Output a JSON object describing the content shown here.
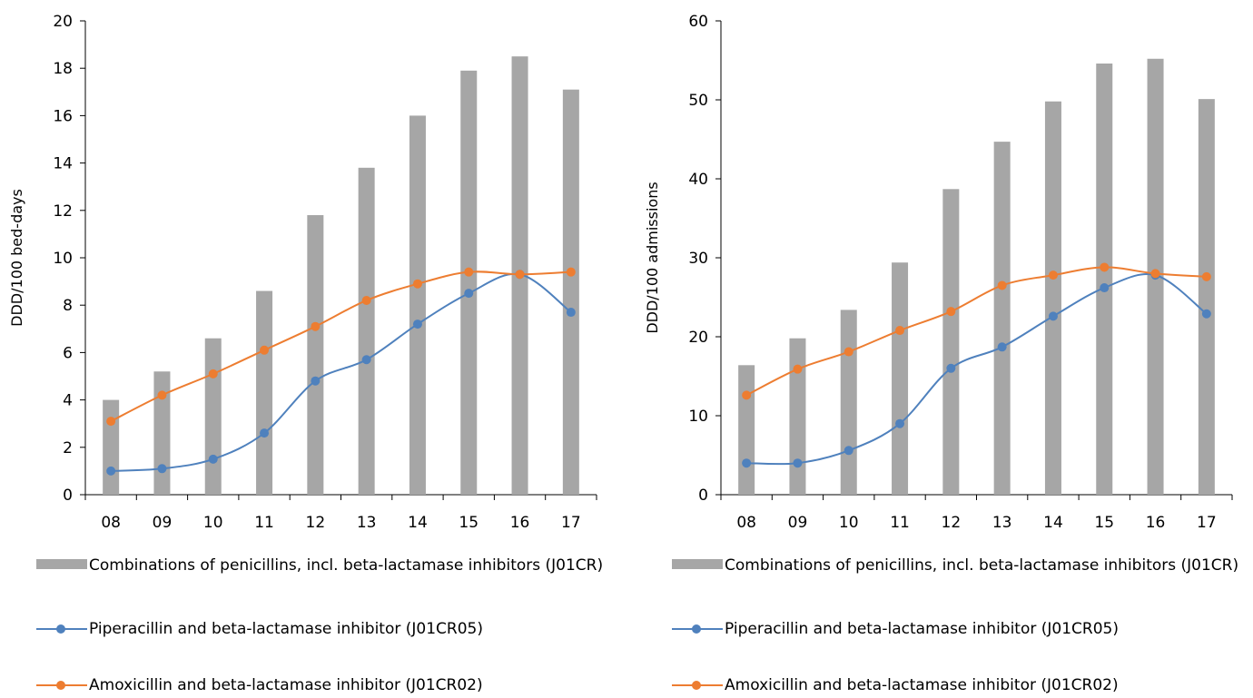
{
  "colors": {
    "bar": "#a6a6a6",
    "piperacillin": "#4f81bd",
    "amoxicillin": "#ed7d31",
    "axis": "#000000"
  },
  "chart_data": [
    {
      "type": "bar+line",
      "categories": [
        "08",
        "09",
        "10",
        "11",
        "12",
        "13",
        "14",
        "15",
        "16",
        "17"
      ],
      "ylabel": "DDD/100 bed-days",
      "ylim": [
        0,
        20
      ],
      "yticks": [
        "0",
        "2",
        "4",
        "6",
        "8",
        "10",
        "12",
        "14",
        "16",
        "18",
        "20"
      ],
      "grid": false,
      "legend_position": "bottom",
      "series": [
        {
          "name": "Combinations of penicillins, incl. beta-lactamase inhibitors (J01CR)",
          "kind": "bar",
          "color": "#a6a6a6",
          "values": [
            4.0,
            5.2,
            6.6,
            8.6,
            11.8,
            13.8,
            16.0,
            17.9,
            18.5,
            17.1
          ]
        },
        {
          "name": "Piperacillin and beta-lactamase inhibitor (J01CR05)",
          "kind": "line",
          "color": "#4f81bd",
          "values": [
            1.0,
            1.1,
            1.5,
            2.6,
            4.8,
            5.7,
            7.2,
            8.5,
            9.3,
            7.7
          ]
        },
        {
          "name": "Amoxicillin and beta-lactamase inhibitor (J01CR02)",
          "kind": "line",
          "color": "#ed7d31",
          "values": [
            3.1,
            4.2,
            5.1,
            6.1,
            7.1,
            8.2,
            8.9,
            9.4,
            9.3,
            9.4
          ]
        }
      ]
    },
    {
      "type": "bar+line",
      "categories": [
        "08",
        "09",
        "10",
        "11",
        "12",
        "13",
        "14",
        "15",
        "16",
        "17"
      ],
      "ylabel": "DDD/100 admissions",
      "ylim": [
        0,
        60
      ],
      "yticks": [
        "0",
        "10",
        "20",
        "30",
        "40",
        "50",
        "60"
      ],
      "grid": false,
      "legend_position": "bottom",
      "series": [
        {
          "name": "Combinations of penicillins, incl. beta-lactamase inhibitors (J01CR)",
          "kind": "bar",
          "color": "#a6a6a6",
          "values": [
            16.4,
            19.8,
            23.4,
            29.4,
            38.7,
            44.7,
            49.8,
            54.6,
            55.2,
            50.1
          ]
        },
        {
          "name": "Piperacillin and beta-lactamase inhibitor (J01CR05)",
          "kind": "line",
          "color": "#4f81bd",
          "values": [
            4.0,
            4.0,
            5.6,
            9.0,
            16.0,
            18.7,
            22.6,
            26.2,
            27.8,
            22.9
          ]
        },
        {
          "name": "Amoxicillin and beta-lactamase inhibitor (J01CR02)",
          "kind": "line",
          "color": "#ed7d31",
          "values": [
            12.6,
            15.9,
            18.1,
            20.8,
            23.2,
            26.5,
            27.8,
            28.8,
            28.0,
            27.6
          ]
        }
      ]
    }
  ],
  "legend": {
    "bar_label": "Combinations of penicillins, incl. beta-lactamase inhibitors (J01CR)",
    "piperacillin_label": "Piperacillin and beta-lactamase inhibitor (J01CR05)",
    "amoxicillin_label": "Amoxicillin and beta-lactamase inhibitor (J01CR02)"
  }
}
